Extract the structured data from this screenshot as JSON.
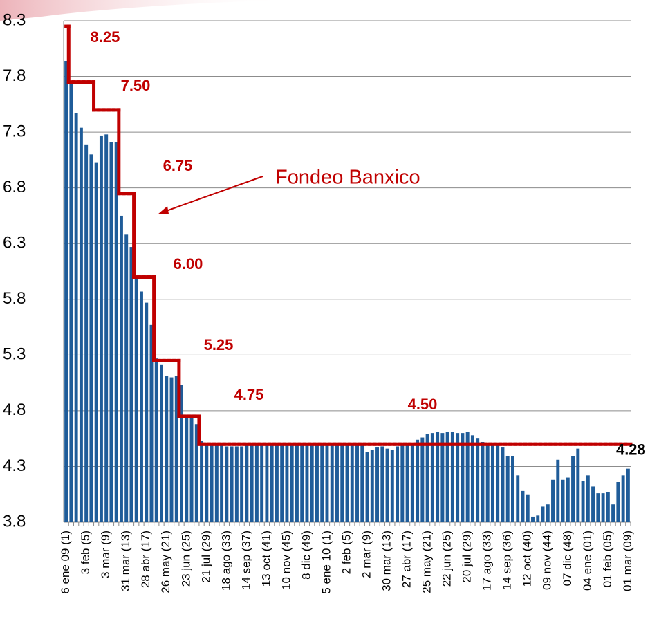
{
  "chart_data": {
    "type": "bar",
    "categories": [
      "6 ene 09 (1)",
      null,
      null,
      null,
      "3 feb (5)",
      null,
      null,
      null,
      "3 mar (9)",
      null,
      null,
      null,
      "31 mar (13)",
      null,
      null,
      null,
      "28 abr (17)",
      null,
      null,
      null,
      "26 may (21)",
      null,
      null,
      null,
      "23 jun (25)",
      null,
      null,
      null,
      "21 jul (29)",
      null,
      null,
      null,
      "18 ago (33)",
      null,
      null,
      null,
      "14 sep (37)",
      null,
      null,
      null,
      "13 oct (41)",
      null,
      null,
      null,
      "10 nov (45)",
      null,
      null,
      null,
      "8 dic (49)",
      null,
      null,
      null,
      "5 ene 10 (1)",
      null,
      null,
      null,
      "2 feb (5)",
      null,
      null,
      null,
      "2 mar (9)",
      null,
      null,
      null,
      "30 mar (13)",
      null,
      null,
      null,
      "27 abr (17)",
      null,
      null,
      null,
      "25 may (21)",
      null,
      null,
      null,
      "22 jun (25)",
      null,
      null,
      null,
      "20 jul (29)",
      null,
      null,
      null,
      "17 ago (33)",
      null,
      null,
      null,
      "14 sep (36)",
      null,
      null,
      null,
      "12 oct (40)",
      null,
      null,
      null,
      "09 nov (44)",
      null,
      null,
      null,
      "07 dic (48)",
      null,
      null,
      null,
      "04 ene (01)",
      null,
      null,
      null,
      "01 feb (05)",
      null,
      null,
      null,
      "01 mar (09)"
    ],
    "series": [
      {
        "color": "#1f5c99",
        "values": [
          7.94,
          7.74,
          7.47,
          7.34,
          7.19,
          7.1,
          7.03,
          7.27,
          7.28,
          7.21,
          7.21,
          6.55,
          6.38,
          6.27,
          6.0,
          5.87,
          5.77,
          5.57,
          5.27,
          5.21,
          5.11,
          5.1,
          5.11,
          5.03,
          4.74,
          4.74,
          4.68,
          4.53,
          4.5,
          4.5,
          4.49,
          4.49,
          4.48,
          4.48,
          4.48,
          4.48,
          4.49,
          4.49,
          4.49,
          4.49,
          4.5,
          4.5,
          4.5,
          4.5,
          4.5,
          4.5,
          4.5,
          4.5,
          4.5,
          4.5,
          4.5,
          4.5,
          4.5,
          4.5,
          4.5,
          4.5,
          4.49,
          4.5,
          4.5,
          4.5,
          4.43,
          4.45,
          4.47,
          4.48,
          4.46,
          4.45,
          4.48,
          4.49,
          4.51,
          4.51,
          4.54,
          4.56,
          4.59,
          4.6,
          4.61,
          4.6,
          4.61,
          4.61,
          4.6,
          4.6,
          4.61,
          4.58,
          4.55,
          4.52,
          4.49,
          4.5,
          4.5,
          4.47,
          4.39,
          4.39,
          4.22,
          4.08,
          4.05,
          3.85,
          3.86,
          3.94,
          3.96,
          4.18,
          4.36,
          4.18,
          4.2,
          4.39,
          4.46,
          4.17,
          4.22,
          4.12,
          4.06,
          4.06,
          4.07,
          3.96,
          4.16,
          4.22,
          4.28
        ],
        "value_labels": [
          null,
          null,
          null,
          null,
          null,
          null,
          null,
          null,
          null,
          null,
          null,
          null,
          null,
          null,
          null,
          null,
          null,
          null,
          null,
          null,
          null,
          null,
          null,
          null,
          null,
          null,
          null,
          null,
          null,
          null,
          null,
          null,
          null,
          null,
          null,
          null,
          null,
          null,
          null,
          null,
          null,
          null,
          null,
          null,
          null,
          null,
          null,
          null,
          null,
          null,
          null,
          null,
          null,
          null,
          null,
          null,
          null,
          null,
          null,
          null,
          null,
          null,
          null,
          null,
          null,
          null,
          null,
          null,
          null,
          null,
          null,
          null,
          null,
          null,
          null,
          null,
          null,
          null,
          null,
          null,
          null,
          null,
          null,
          null,
          null,
          null,
          null,
          null,
          null,
          null,
          null,
          null,
          null,
          null,
          null,
          null,
          null,
          null,
          null,
          null,
          null,
          null,
          null,
          null,
          null,
          null,
          null,
          null,
          null,
          null,
          null,
          null,
          "4.28"
        ]
      },
      {
        "name": "Fondeo Banxico",
        "type": "step",
        "color": "#c00000",
        "values": [
          8.25,
          7.75,
          7.75,
          7.75,
          7.75,
          7.75,
          7.5,
          7.5,
          7.5,
          7.5,
          7.5,
          6.75,
          6.75,
          6.75,
          6.0,
          6.0,
          6.0,
          6.0,
          5.25,
          5.25,
          5.25,
          5.25,
          5.25,
          4.75,
          4.75,
          4.75,
          4.75,
          4.5,
          4.5,
          4.5,
          4.5,
          4.5,
          4.5,
          4.5,
          4.5,
          4.5,
          4.5,
          4.5,
          4.5,
          4.5,
          4.5,
          4.5,
          4.5,
          4.5,
          4.5,
          4.5,
          4.5,
          4.5,
          4.5,
          4.5,
          4.5,
          4.5,
          4.5,
          4.5,
          4.5,
          4.5,
          4.5,
          4.5,
          4.5,
          4.5,
          4.5,
          4.5,
          4.5,
          4.5,
          4.5,
          4.5,
          4.5,
          4.5,
          4.5,
          4.5,
          4.5,
          4.5,
          4.5,
          4.5,
          4.5,
          4.5,
          4.5,
          4.5,
          4.5,
          4.5,
          4.5,
          4.5,
          4.5,
          4.5,
          4.5,
          4.5,
          4.5,
          4.5,
          4.5,
          4.5,
          4.5,
          4.5,
          4.5,
          4.5,
          4.5,
          4.5,
          4.5,
          4.5,
          4.5,
          4.5,
          4.5,
          4.5,
          4.5,
          4.5,
          4.5,
          4.5,
          4.5,
          4.5,
          4.5,
          4.5,
          4.5,
          4.5,
          4.5
        ],
        "value_labels": [
          "8.25",
          null,
          null,
          null,
          null,
          null,
          null,
          "7.50",
          null,
          null,
          null,
          null,
          "6.75",
          null,
          null,
          null,
          "6.00",
          null,
          null,
          null,
          "5.25",
          null,
          null,
          null,
          null,
          "4.75",
          null,
          null,
          null,
          null,
          null,
          null,
          null,
          null,
          null,
          null,
          null,
          null,
          null,
          null,
          null,
          null,
          null,
          null,
          null,
          null,
          null,
          null,
          null,
          null,
          null,
          null,
          null,
          null,
          null,
          null,
          null,
          null,
          null,
          null,
          null,
          null,
          null,
          null,
          null,
          null,
          null,
          null,
          null,
          null,
          "4.50",
          null,
          null,
          null,
          null,
          null,
          null,
          null,
          null,
          null,
          null,
          null,
          null,
          null,
          null,
          null,
          null,
          null,
          null,
          null,
          null,
          null,
          null,
          null,
          null,
          null,
          null,
          null,
          null,
          null,
          null,
          null,
          null,
          null,
          null,
          null,
          null,
          null,
          null,
          null,
          null,
          null,
          null
        ]
      }
    ],
    "ylim": [
      3.8,
      8.3
    ],
    "yticks": [
      3.8,
      4.3,
      4.8,
      5.3,
      5.8,
      6.3,
      6.8,
      7.3,
      7.8,
      8.3
    ],
    "grid": true
  }
}
